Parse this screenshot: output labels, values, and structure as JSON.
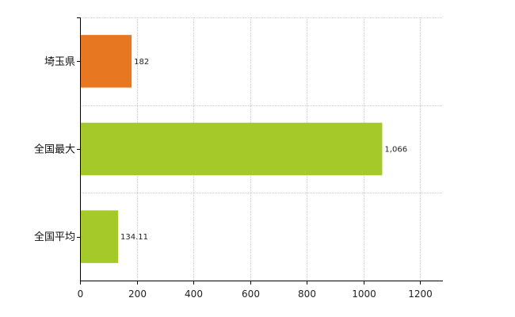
{
  "chart_data": {
    "type": "bar",
    "orientation": "horizontal",
    "categories": [
      "埼玉県",
      "全国最大",
      "全国平均"
    ],
    "values": [
      182,
      1066,
      134.11
    ],
    "value_labels": [
      "182",
      "1,066",
      "134.11"
    ],
    "bar_colors": [
      "#e87722",
      "#a4c929",
      "#a4c929"
    ],
    "xlim": [
      0,
      1280
    ],
    "xticks": [
      0,
      200,
      400,
      600,
      800,
      1000,
      1200
    ],
    "grid": true,
    "legend": "none"
  }
}
